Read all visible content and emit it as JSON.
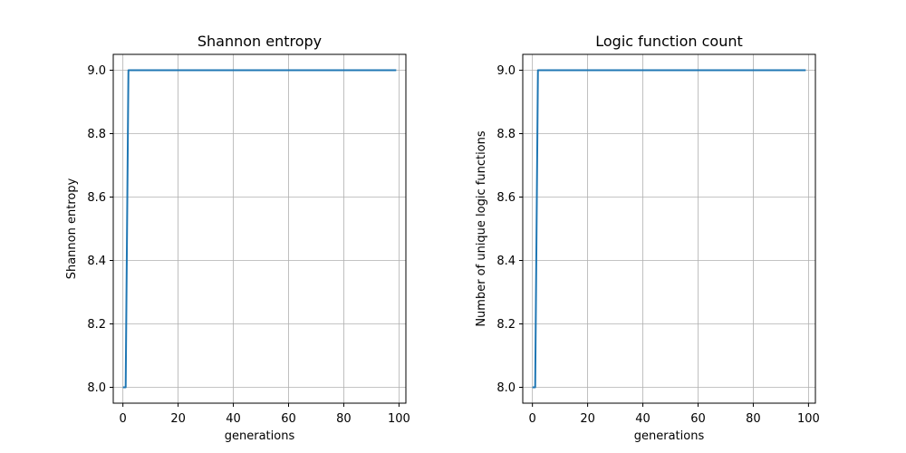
{
  "chart_data": [
    {
      "type": "line",
      "title": "Shannon entropy",
      "xlabel": "generations",
      "ylabel": "Shannon entropy",
      "xlim": [
        -3.5,
        102.5
      ],
      "ylim": [
        7.95,
        9.05
      ],
      "xticks": [
        0,
        20,
        40,
        60,
        80,
        100
      ],
      "yticks": [
        8.0,
        8.2,
        8.4,
        8.6,
        8.8,
        9.0
      ],
      "xtick_labels": [
        "0",
        "20",
        "40",
        "60",
        "80",
        "100"
      ],
      "ytick_labels": [
        "8.0",
        "8.2",
        "8.4",
        "8.6",
        "8.8",
        "9.0"
      ],
      "grid": true,
      "color": "#1f77b4",
      "series": [
        {
          "x": [
            0,
            1,
            2,
            99
          ],
          "y": [
            8.0,
            8.0,
            9.0,
            9.0
          ]
        }
      ]
    },
    {
      "type": "line",
      "title": "Logic function count",
      "xlabel": "generations",
      "ylabel": "Number of unique logic functions",
      "xlim": [
        -3.5,
        102.5
      ],
      "ylim": [
        7.95,
        9.05
      ],
      "xticks": [
        0,
        20,
        40,
        60,
        80,
        100
      ],
      "yticks": [
        8.0,
        8.2,
        8.4,
        8.6,
        8.8,
        9.0
      ],
      "xtick_labels": [
        "0",
        "20",
        "40",
        "60",
        "80",
        "100"
      ],
      "ytick_labels": [
        "8.0",
        "8.2",
        "8.4",
        "8.6",
        "8.8",
        "9.0"
      ],
      "grid": true,
      "color": "#1f77b4",
      "series": [
        {
          "x": [
            0,
            1,
            2,
            99
          ],
          "y": [
            8.0,
            8.0,
            9.0,
            9.0
          ]
        }
      ]
    }
  ]
}
